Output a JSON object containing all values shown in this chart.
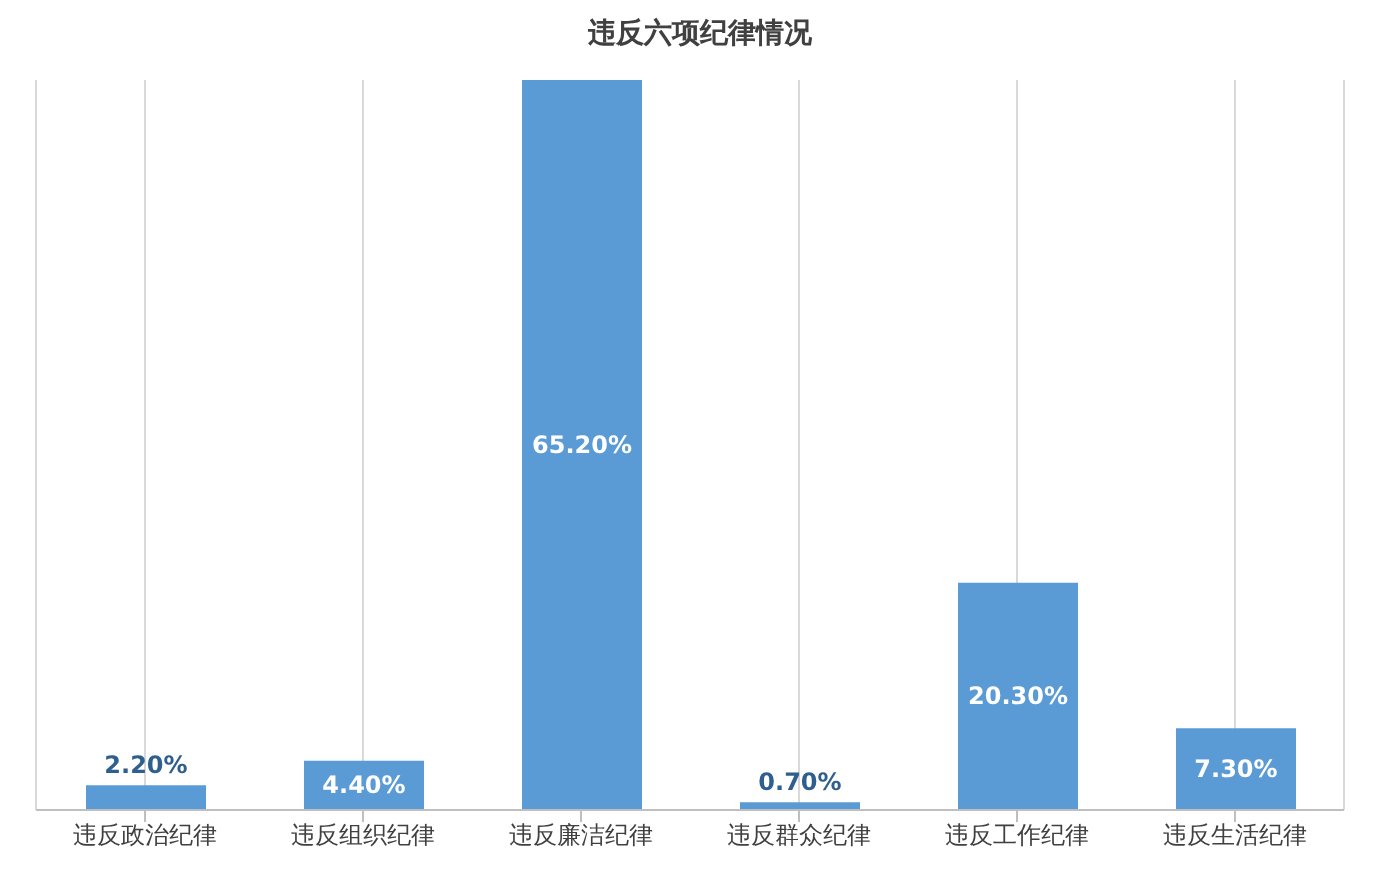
{
  "chart_data": {
    "type": "bar",
    "title": "违反六项纪律情况",
    "categories": [
      "违反政治纪律",
      "违反组织纪律",
      "违反廉洁纪律",
      "违反群众纪律",
      "违反工作纪律",
      "违反生活纪律"
    ],
    "values": [
      2.2,
      4.4,
      65.2,
      0.7,
      20.3,
      7.3
    ],
    "value_labels": [
      "2.20%",
      "4.40%",
      "65.20%",
      "0.70%",
      "20.30%",
      "7.30%"
    ],
    "color": "#5b9bd5",
    "grid": "x"
  }
}
